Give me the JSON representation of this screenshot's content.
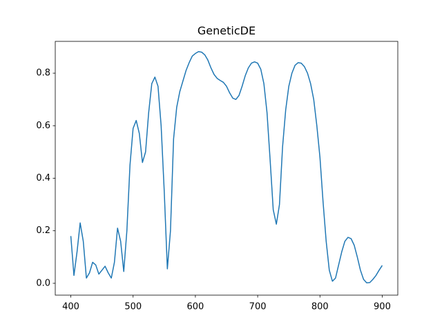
{
  "chart_data": {
    "type": "line",
    "title": "GeneticDE",
    "x": [
      400,
      405,
      410,
      415,
      420,
      425,
      430,
      435,
      440,
      445,
      450,
      455,
      460,
      465,
      470,
      475,
      480,
      485,
      490,
      495,
      500,
      505,
      510,
      515,
      520,
      525,
      530,
      535,
      540,
      545,
      550,
      555,
      560,
      565,
      570,
      575,
      580,
      585,
      590,
      595,
      600,
      605,
      610,
      615,
      620,
      625,
      630,
      635,
      640,
      645,
      650,
      655,
      660,
      665,
      670,
      675,
      680,
      685,
      690,
      695,
      700,
      705,
      710,
      715,
      720,
      725,
      730,
      735,
      740,
      745,
      750,
      755,
      760,
      765,
      770,
      775,
      780,
      785,
      790,
      795,
      800,
      805,
      810,
      815,
      820,
      825,
      830,
      835,
      840,
      845,
      850,
      855,
      860,
      865,
      870,
      875,
      880,
      885,
      890,
      895,
      900
    ],
    "series": [
      {
        "color": "#1f77b4",
        "values": [
          0.18,
          0.03,
          0.12,
          0.23,
          0.16,
          0.02,
          0.04,
          0.08,
          0.07,
          0.035,
          0.05,
          0.065,
          0.04,
          0.02,
          0.08,
          0.21,
          0.16,
          0.045,
          0.2,
          0.45,
          0.59,
          0.62,
          0.57,
          0.46,
          0.5,
          0.65,
          0.76,
          0.785,
          0.75,
          0.6,
          0.35,
          0.055,
          0.2,
          0.55,
          0.67,
          0.73,
          0.77,
          0.81,
          0.84,
          0.865,
          0.875,
          0.882,
          0.88,
          0.87,
          0.85,
          0.82,
          0.795,
          0.78,
          0.772,
          0.765,
          0.75,
          0.725,
          0.705,
          0.7,
          0.715,
          0.75,
          0.79,
          0.82,
          0.838,
          0.843,
          0.838,
          0.815,
          0.76,
          0.65,
          0.47,
          0.28,
          0.225,
          0.3,
          0.52,
          0.66,
          0.75,
          0.8,
          0.83,
          0.84,
          0.838,
          0.825,
          0.8,
          0.76,
          0.7,
          0.6,
          0.48,
          0.31,
          0.16,
          0.05,
          0.008,
          0.02,
          0.07,
          0.12,
          0.16,
          0.175,
          0.17,
          0.145,
          0.1,
          0.05,
          0.015,
          0.002,
          0.003,
          0.015,
          0.03,
          0.05,
          0.068
        ]
      }
    ],
    "xlim": [
      375,
      925
    ],
    "ylim": [
      -0.045,
      0.921
    ],
    "xticks": [
      400,
      500,
      600,
      700,
      800,
      900
    ],
    "yticks": [
      {
        "value": 0,
        "label": "0.0"
      },
      0.2,
      0.4,
      0.6,
      0.8
    ]
  }
}
